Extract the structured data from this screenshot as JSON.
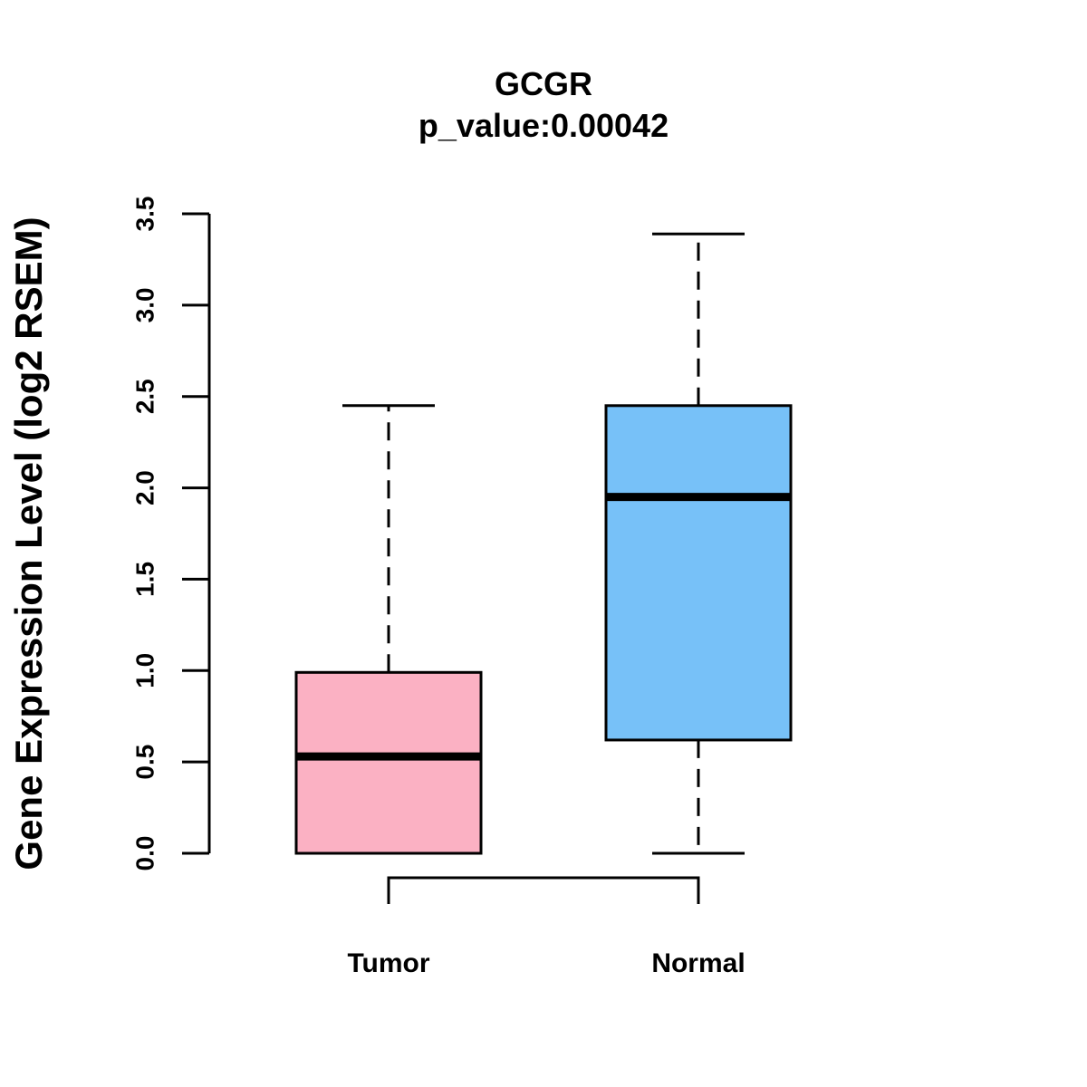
{
  "chart_data": {
    "type": "box",
    "title": "GCGR",
    "subtitle": "p_value:0.00042",
    "xlabel": "",
    "ylabel": "Gene Expression Level (log2 RSEM)",
    "ylim": [
      0,
      3.5
    ],
    "yticks": [
      "0.0",
      "0.5",
      "1.0",
      "1.5",
      "2.0",
      "2.5",
      "3.0",
      "3.5"
    ],
    "grid": false,
    "categories": [
      "Tumor",
      "Normal"
    ],
    "colors": [
      "#fbb1c3",
      "#77c1f8"
    ],
    "boxes": [
      {
        "name": "Tumor",
        "whisker_low": 0.0,
        "q1": 0.0,
        "median": 0.53,
        "q3": 0.99,
        "whisker_high": 2.45
      },
      {
        "name": "Normal",
        "whisker_low": 0.0,
        "q1": 0.62,
        "median": 1.95,
        "q3": 2.45,
        "whisker_high": 3.39
      }
    ],
    "comparison_bracket": [
      "Tumor",
      "Normal"
    ]
  }
}
